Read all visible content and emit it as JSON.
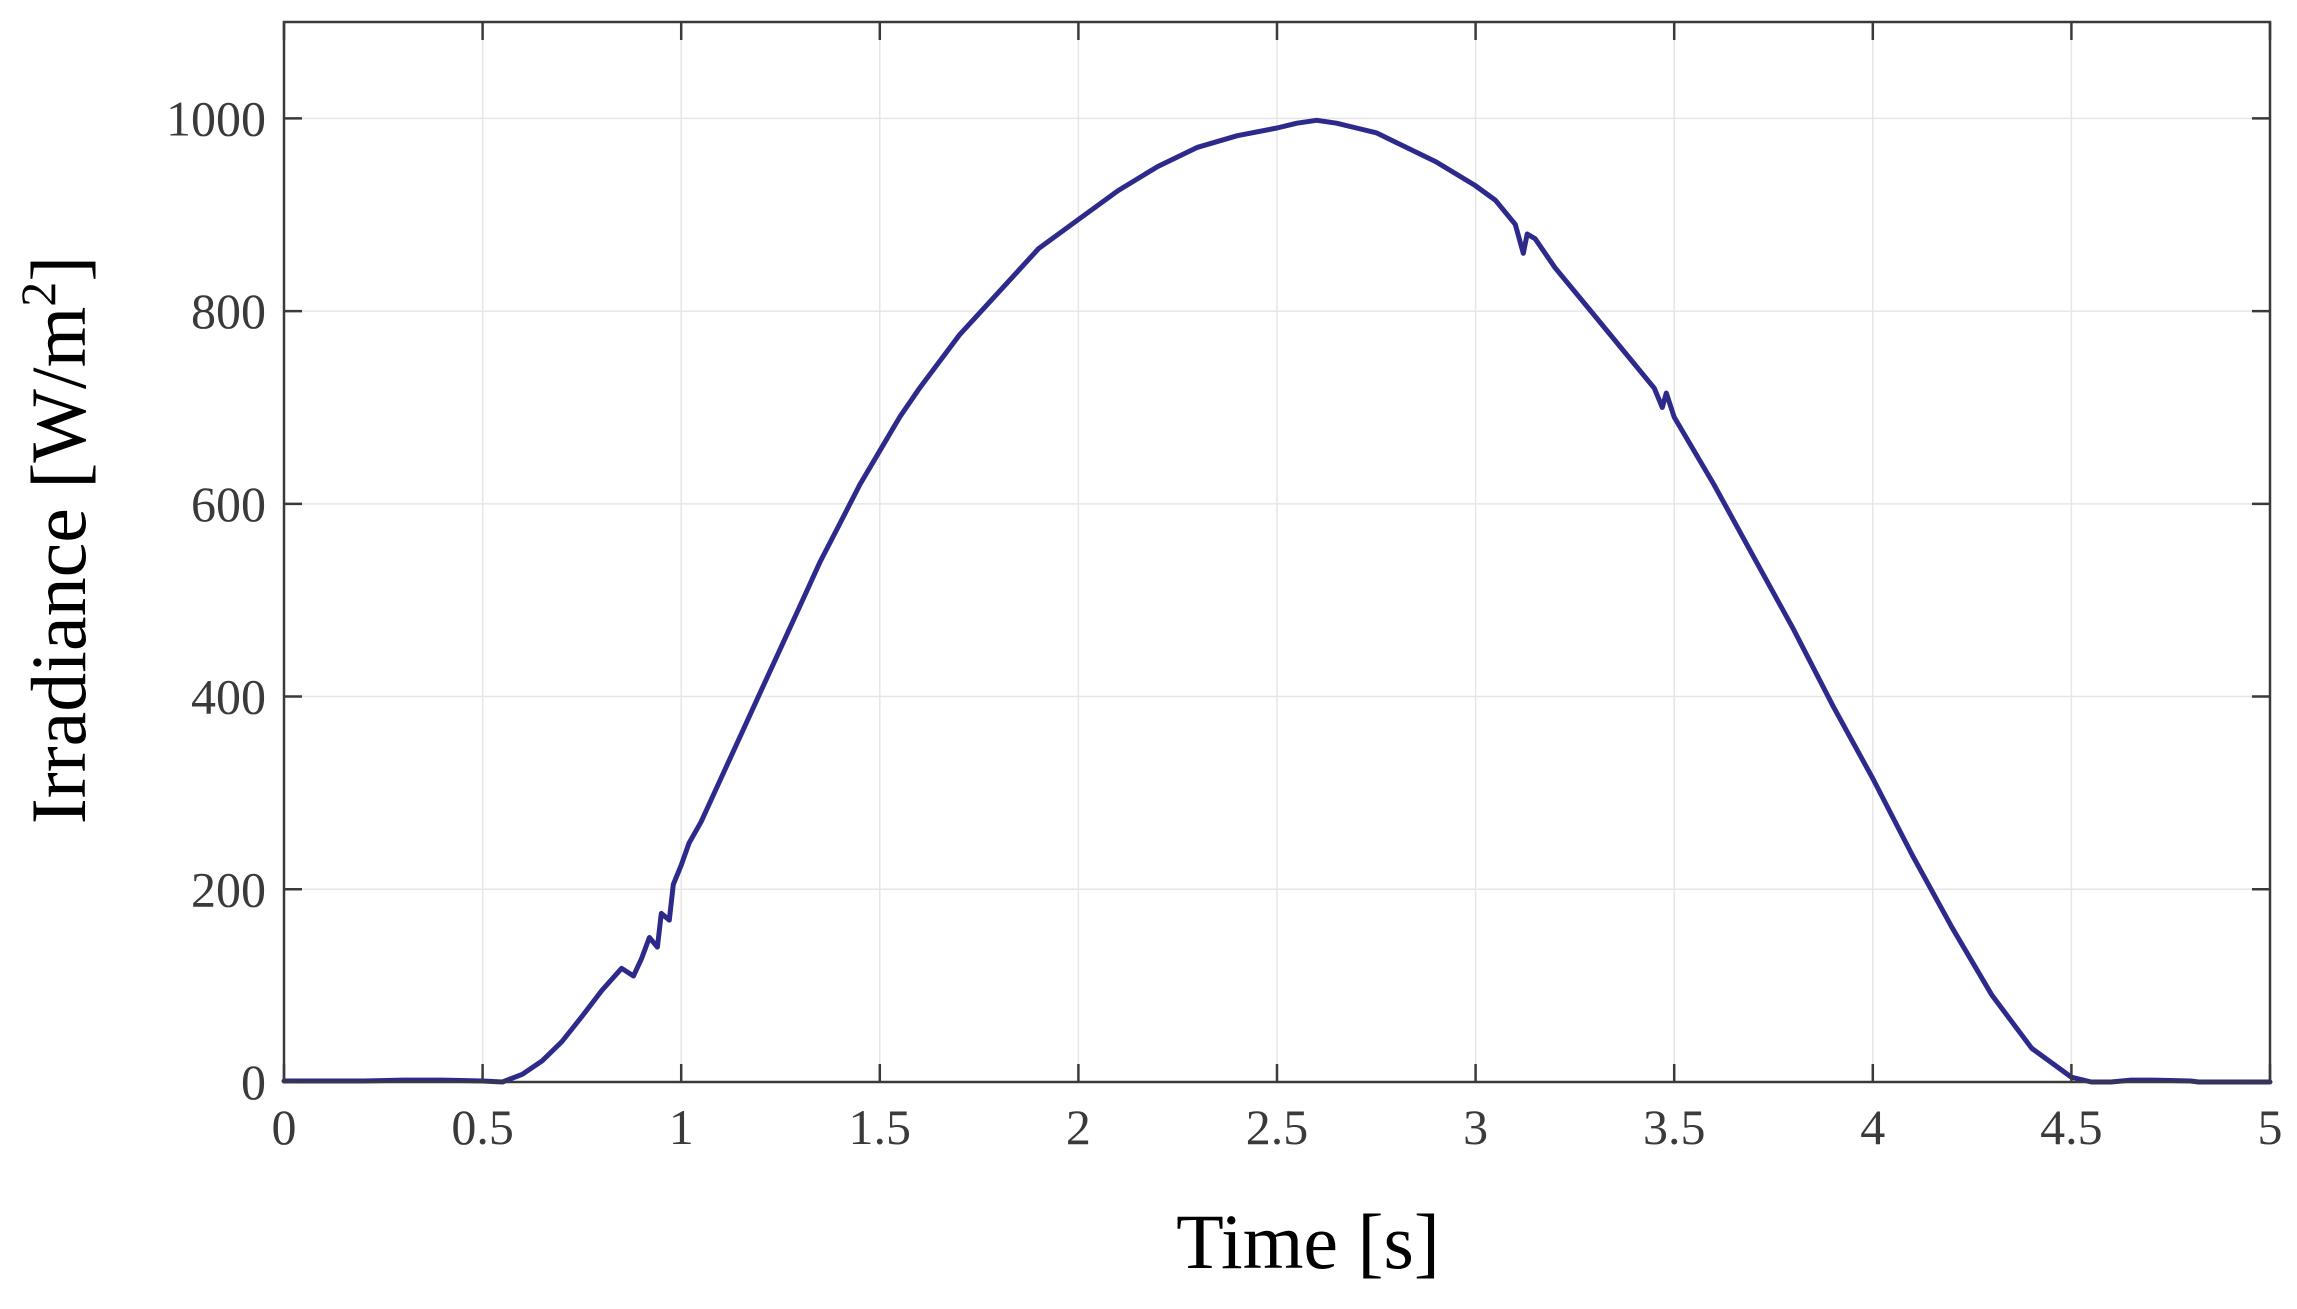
{
  "chart_data": {
    "type": "line",
    "title": "",
    "xlabel": "Time [s]",
    "ylabel": {
      "prefix": "Irradiance [W/m",
      "superscript": "2",
      "suffix": "]"
    },
    "xlim": [
      0,
      5
    ],
    "ylim": [
      0,
      1100
    ],
    "xticks": [
      0,
      0.5,
      1,
      1.5,
      2,
      2.5,
      3,
      3.5,
      4,
      4.5,
      5
    ],
    "xtick_labels": [
      "0",
      "0.5",
      "1",
      "1.5",
      "2",
      "2.5",
      "3",
      "3.5",
      "4",
      "4.5",
      "5"
    ],
    "yticks": [
      0,
      200,
      400,
      600,
      800,
      1000
    ],
    "ytick_labels": [
      "0",
      "200",
      "400",
      "600",
      "800",
      "1000"
    ],
    "grid": true,
    "legend": "none",
    "series": [
      {
        "color": "#2e2a8c",
        "x": [
          0,
          0.1,
          0.2,
          0.3,
          0.4,
          0.5,
          0.55,
          0.6,
          0.65,
          0.7,
          0.75,
          0.8,
          0.85,
          0.88,
          0.9,
          0.92,
          0.94,
          0.95,
          0.97,
          0.98,
          1.0,
          1.02,
          1.05,
          1.1,
          1.15,
          1.2,
          1.25,
          1.3,
          1.35,
          1.4,
          1.45,
          1.5,
          1.55,
          1.6,
          1.7,
          1.8,
          1.9,
          2.0,
          2.1,
          2.2,
          2.3,
          2.4,
          2.5,
          2.55,
          2.6,
          2.65,
          2.7,
          2.75,
          2.8,
          2.9,
          3.0,
          3.05,
          3.1,
          3.12,
          3.13,
          3.15,
          3.2,
          3.3,
          3.4,
          3.45,
          3.47,
          3.48,
          3.5,
          3.6,
          3.7,
          3.8,
          3.9,
          4.0,
          4.1,
          4.2,
          4.3,
          4.4,
          4.5,
          4.55,
          4.6,
          4.65,
          4.7,
          4.8,
          4.82,
          4.9,
          5.0
        ],
        "y": [
          1,
          1,
          1,
          2,
          2,
          1,
          0,
          8,
          22,
          42,
          68,
          95,
          118,
          110,
          128,
          150,
          140,
          175,
          168,
          205,
          225,
          248,
          270,
          315,
          360,
          405,
          450,
          495,
          540,
          580,
          620,
          655,
          690,
          720,
          775,
          820,
          865,
          895,
          925,
          950,
          970,
          982,
          990,
          995,
          998,
          995,
          990,
          985,
          975,
          955,
          930,
          915,
          890,
          860,
          880,
          875,
          845,
          795,
          745,
          720,
          700,
          715,
          690,
          620,
          545,
          470,
          390,
          315,
          235,
          160,
          90,
          35,
          5,
          0,
          0,
          2,
          2,
          1,
          0,
          0,
          0
        ]
      }
    ]
  }
}
